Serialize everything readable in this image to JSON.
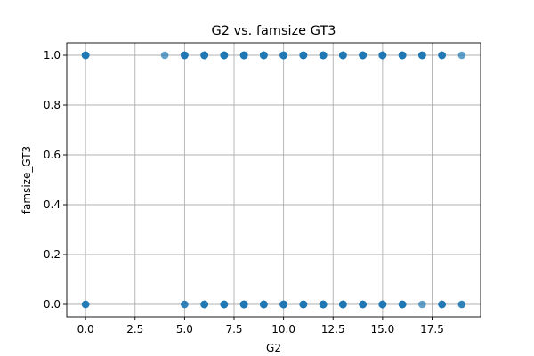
{
  "chart_data": {
    "type": "scatter",
    "title": "G2 vs. famsize GT3",
    "xlabel": "G2",
    "ylabel": "famsize_GT3",
    "xlim": [
      -0.95,
      19.95
    ],
    "ylim": [
      -0.05,
      1.05
    ],
    "xticks": [
      0.0,
      2.5,
      5.0,
      7.5,
      10.0,
      12.5,
      15.0,
      17.5
    ],
    "xtick_labels": [
      "0.0",
      "2.5",
      "5.0",
      "7.5",
      "10.0",
      "12.5",
      "15.0",
      "17.5"
    ],
    "yticks": [
      0.0,
      0.2,
      0.4,
      0.6,
      0.8,
      1.0
    ],
    "ytick_labels": [
      "0.0",
      "0.2",
      "0.4",
      "0.6",
      "0.8",
      "1.0"
    ],
    "grid": true,
    "marker_color": "#1f77b4",
    "series": [
      {
        "points": [
          {
            "x": 0,
            "y": 1,
            "n": 6
          },
          {
            "x": 4,
            "y": 1,
            "n": 1
          },
          {
            "x": 5,
            "y": 1,
            "n": 6
          },
          {
            "x": 6,
            "y": 1,
            "n": 10
          },
          {
            "x": 7,
            "y": 1,
            "n": 10
          },
          {
            "x": 8,
            "y": 1,
            "n": 10
          },
          {
            "x": 9,
            "y": 1,
            "n": 10
          },
          {
            "x": 10,
            "y": 1,
            "n": 10
          },
          {
            "x": 11,
            "y": 1,
            "n": 10
          },
          {
            "x": 12,
            "y": 1,
            "n": 10
          },
          {
            "x": 13,
            "y": 1,
            "n": 10
          },
          {
            "x": 14,
            "y": 1,
            "n": 10
          },
          {
            "x": 15,
            "y": 1,
            "n": 10
          },
          {
            "x": 16,
            "y": 1,
            "n": 8
          },
          {
            "x": 17,
            "y": 1,
            "n": 5
          },
          {
            "x": 18,
            "y": 1,
            "n": 4
          },
          {
            "x": 19,
            "y": 1,
            "n": 1
          },
          {
            "x": 0,
            "y": 0,
            "n": 3
          },
          {
            "x": 5,
            "y": 0,
            "n": 2
          },
          {
            "x": 6,
            "y": 0,
            "n": 6
          },
          {
            "x": 7,
            "y": 0,
            "n": 6
          },
          {
            "x": 8,
            "y": 0,
            "n": 10
          },
          {
            "x": 9,
            "y": 0,
            "n": 10
          },
          {
            "x": 10,
            "y": 0,
            "n": 10
          },
          {
            "x": 11,
            "y": 0,
            "n": 10
          },
          {
            "x": 12,
            "y": 0,
            "n": 10
          },
          {
            "x": 13,
            "y": 0,
            "n": 10
          },
          {
            "x": 14,
            "y": 0,
            "n": 5
          },
          {
            "x": 15,
            "y": 0,
            "n": 10
          },
          {
            "x": 16,
            "y": 0,
            "n": 5
          },
          {
            "x": 17,
            "y": 0,
            "n": 1
          },
          {
            "x": 18,
            "y": 0,
            "n": 4
          },
          {
            "x": 19,
            "y": 0,
            "n": 2
          }
        ]
      }
    ]
  }
}
